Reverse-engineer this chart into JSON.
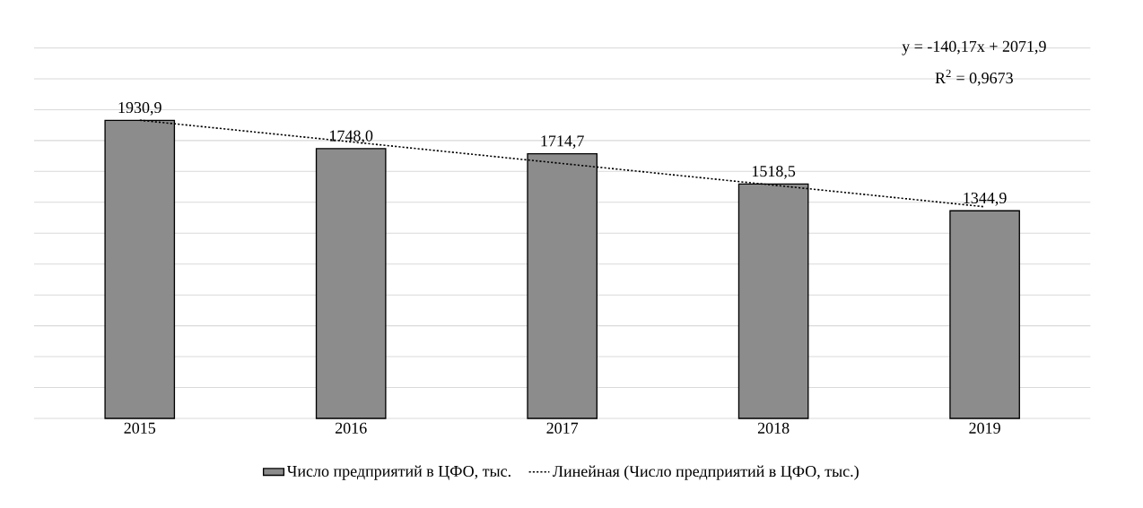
{
  "chart_data": {
    "type": "bar",
    "categories": [
      "2015",
      "2016",
      "2017",
      "2018",
      "2019"
    ],
    "series": [
      {
        "name": "Число предприятий в ЦФО, тыс.",
        "color": "#8c8c8c",
        "values": [
          1930.9,
          1748.0,
          1714.7,
          1518.5,
          1344.9
        ],
        "value_labels": [
          "1930,9",
          "1748,0",
          "1714,7",
          "1518,5",
          "1344,9"
        ]
      },
      {
        "name": "Линейная (Число предприятий в ЦФО, тыс.)",
        "type": "line",
        "color": "#000000",
        "line_style": "dotted",
        "values": [
          1931.73,
          1791.56,
          1651.39,
          1511.22,
          1371.05
        ]
      }
    ],
    "tick_labels": "x",
    "grid": "y",
    "legend": "bottom",
    "annotations": [
      "y = -140,17x + 2071,9",
      "R$^{2}$ = 0,9673"
    ]
  }
}
